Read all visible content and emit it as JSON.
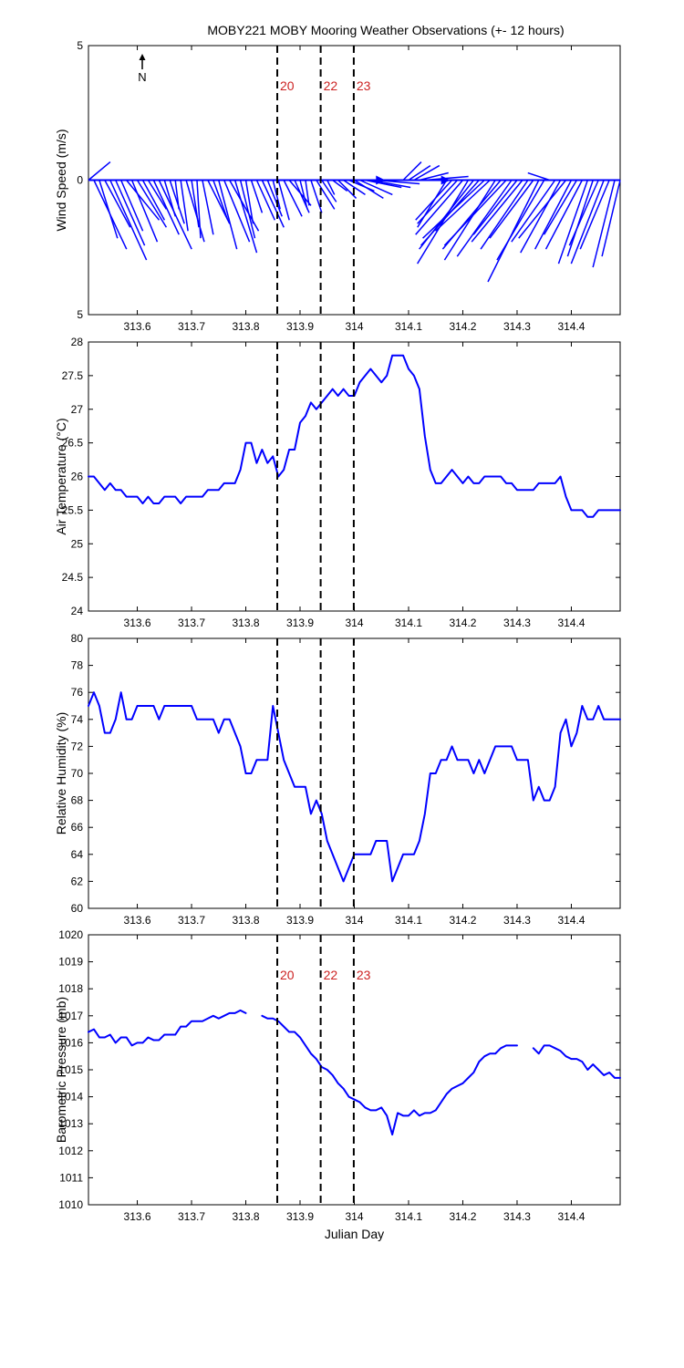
{
  "title": "MOBY221 MOBY Mooring Weather Observations (+- 12 hours)",
  "colors": {
    "series": "#0000ff",
    "event_label": "#cc2222",
    "vline": "#000000"
  },
  "events": [
    {
      "label": "20",
      "x": 313.858
    },
    {
      "label": "22",
      "x": 313.938
    },
    {
      "label": "23",
      "x": 313.999
    }
  ],
  "north_label": "N",
  "chart_data": [
    {
      "type": "quiver",
      "ylabel": "Wind Speed (m/s)",
      "xlabel": "",
      "xlim": [
        313.51,
        314.49
      ],
      "ylim": [
        -5,
        5
      ],
      "yticks": [
        5,
        0,
        5
      ],
      "xticks": [
        "313.6",
        "313.7",
        "313.8",
        "313.9",
        "314",
        "314.1",
        "314.2",
        "314.3",
        "314.4"
      ],
      "show_event_labels": true,
      "x": [
        313.51,
        313.52,
        313.53,
        313.54,
        313.55,
        313.56,
        313.57,
        313.58,
        313.59,
        313.6,
        313.61,
        313.62,
        313.63,
        313.64,
        313.65,
        313.66,
        313.67,
        313.68,
        313.69,
        313.7,
        313.71,
        313.72,
        313.73,
        313.74,
        313.75,
        313.76,
        313.77,
        313.78,
        313.79,
        313.8,
        313.81,
        313.82,
        313.83,
        313.84,
        313.85,
        313.86,
        313.87,
        313.88,
        313.89,
        313.9,
        313.91,
        313.92,
        313.93,
        313.94,
        313.95,
        313.96,
        313.97,
        313.98,
        313.99,
        314.0,
        314.01,
        314.02,
        314.03,
        314.04,
        314.05,
        314.06,
        314.07,
        314.08,
        314.09,
        314.1,
        314.11,
        314.12,
        314.13,
        314.14,
        314.15,
        314.16,
        314.17,
        314.18,
        314.19,
        314.2,
        314.21,
        314.22,
        314.23,
        314.24,
        314.25,
        314.26,
        314.27,
        314.28,
        314.29,
        314.3,
        314.31,
        314.32,
        314.33,
        314.34,
        314.35,
        314.36,
        314.37,
        314.38,
        314.39,
        314.4,
        314.41,
        314.42,
        314.43,
        314.44,
        314.45,
        314.46,
        314.47,
        314.48,
        314.49
      ],
      "u": [
        0.6,
        0.9,
        0.5,
        0.7,
        1.0,
        0.8,
        0.6,
        0.9,
        0.7,
        0.8,
        0.6,
        0.5,
        0.7,
        0.9,
        0.3,
        0.4,
        0.1,
        0.2,
        0.5,
        0.2,
        0.1,
        0.3,
        0.6,
        0.4,
        0.5,
        0.7,
        0.8,
        0.6,
        0.4,
        0.2,
        0.3,
        0.5,
        0.6,
        0.4,
        0.2,
        0.3,
        0.5,
        0.6,
        0.4,
        0.2,
        0.1,
        0.3,
        0.5,
        0.4,
        0.2,
        0.4,
        0.5,
        0.6,
        0.7,
        0.8,
        0.9,
        1.0,
        1.1,
        1.2,
        1.0,
        1.3,
        1.5,
        1.4,
        0.5,
        0.6,
        0.7,
        0.8,
        1.2,
        1.0,
        0.6,
        0.4,
        -0.8,
        -1.0,
        -1.1,
        -1.3,
        -1.4,
        -1.5,
        -1.6,
        -1.7,
        -1.5,
        -1.4,
        -1.6,
        -1.7,
        -1.5,
        -1.2,
        -1.4,
        -1.3,
        -1.2,
        -1.4,
        -1.3,
        -0.6,
        -1.2,
        -1.1,
        -1.3,
        -1.0,
        -0.9,
        -1.0,
        -0.8,
        -0.7,
        -0.8,
        -0.9,
        -0.8,
        -0.6,
        -0.5
      ],
      "v": [
        0.5,
        -1.9,
        -1.6,
        -1.3,
        -2.2,
        -1.8,
        -1.4,
        -1.1,
        -1.7,
        -1.3,
        -1.1,
        -0.8,
        -1.5,
        -1.9,
        -1.0,
        -1.2,
        -0.8,
        -1.4,
        -1.7,
        -1.3,
        -1.6,
        -1.5,
        -1.2,
        -1.1,
        -1.9,
        -1.7,
        -1.4,
        -2.0,
        -1.6,
        -1.2,
        -0.9,
        -1.1,
        -1.3,
        -1.0,
        -0.8,
        -1.1,
        -1.0,
        -0.7,
        -0.9,
        -0.8,
        -0.7,
        -0.9,
        -0.8,
        -0.6,
        -0.4,
        -0.3,
        -0.5,
        -0.4,
        -0.3,
        -0.5,
        -0.4,
        -0.2,
        -0.2,
        -0.1,
        0.0,
        0.0,
        0.0,
        0.0,
        0.5,
        0.4,
        0.4,
        0.2,
        0.1,
        0.0,
        0.0,
        0.0,
        -1.3,
        -1.1,
        -1.2,
        -1.5,
        -2.3,
        -1.9,
        -1.8,
        -1.6,
        -1.4,
        -2.2,
        -1.9,
        -1.8,
        -2.1,
        -1.5,
        -1.7,
        -1.9,
        -1.6,
        -2.8,
        -2.2,
        0.2,
        -1.7,
        -2.0,
        -1.6,
        -1.9,
        -1.5,
        -1.9,
        -2.3,
        -2.1,
        -1.8,
        -2.3,
        -1.9,
        -2.4,
        -2.1
      ]
    },
    {
      "type": "line",
      "ylabel": "Air Temperature (°C)",
      "xlabel": "",
      "xlim": [
        313.51,
        314.49
      ],
      "ylim": [
        24,
        28
      ],
      "yticks": [
        24,
        24.5,
        25,
        25.5,
        26,
        26.5,
        27,
        27.5,
        28
      ],
      "xticks": [
        "313.6",
        "313.7",
        "313.8",
        "313.9",
        "314",
        "314.1",
        "314.2",
        "314.3",
        "314.4"
      ],
      "show_event_labels": false,
      "x": [
        313.51,
        313.52,
        313.53,
        313.54,
        313.55,
        313.56,
        313.57,
        313.58,
        313.59,
        313.6,
        313.61,
        313.62,
        313.63,
        313.64,
        313.65,
        313.66,
        313.67,
        313.68,
        313.69,
        313.7,
        313.71,
        313.72,
        313.73,
        313.74,
        313.75,
        313.76,
        313.77,
        313.78,
        313.79,
        313.8,
        313.81,
        313.82,
        313.83,
        313.84,
        313.85,
        313.86,
        313.87,
        313.88,
        313.89,
        313.9,
        313.91,
        313.92,
        313.93,
        313.94,
        313.95,
        313.96,
        313.97,
        313.98,
        313.99,
        314.0,
        314.01,
        314.02,
        314.03,
        314.04,
        314.05,
        314.06,
        314.07,
        314.08,
        314.09,
        314.1,
        314.11,
        314.12,
        314.13,
        314.14,
        314.15,
        314.16,
        314.17,
        314.18,
        314.19,
        314.2,
        314.21,
        314.22,
        314.23,
        314.24,
        314.25,
        314.26,
        314.27,
        314.28,
        314.29,
        314.3,
        314.31,
        314.32,
        314.33,
        314.34,
        314.35,
        314.36,
        314.37,
        314.38,
        314.39,
        314.4,
        314.41,
        314.42,
        314.43,
        314.44,
        314.45,
        314.46,
        314.47,
        314.48,
        314.49
      ],
      "y": [
        26.0,
        26.0,
        25.9,
        25.8,
        25.9,
        25.8,
        25.8,
        25.7,
        25.7,
        25.7,
        25.6,
        25.7,
        25.6,
        25.6,
        25.7,
        25.7,
        25.7,
        25.6,
        25.7,
        25.7,
        25.7,
        25.7,
        25.8,
        25.8,
        25.8,
        25.9,
        25.9,
        25.9,
        26.1,
        26.5,
        26.5,
        26.2,
        26.4,
        26.2,
        26.3,
        26.0,
        26.1,
        26.4,
        26.4,
        26.8,
        26.9,
        27.1,
        27.0,
        27.1,
        27.2,
        27.3,
        27.2,
        27.3,
        27.2,
        27.2,
        27.4,
        27.5,
        27.6,
        27.5,
        27.4,
        27.5,
        27.8,
        27.8,
        27.8,
        27.6,
        27.5,
        27.3,
        26.6,
        26.1,
        25.9,
        25.9,
        26.0,
        26.1,
        26.0,
        25.9,
        26.0,
        25.9,
        25.9,
        26.0,
        26.0,
        26.0,
        26.0,
        25.9,
        25.9,
        25.8,
        25.8,
        25.8,
        25.8,
        25.9,
        25.9,
        25.9,
        25.9,
        26.0,
        25.7,
        25.5,
        25.5,
        25.5,
        25.4,
        25.4,
        25.5,
        25.5,
        25.5,
        25.5,
        25.5
      ]
    },
    {
      "type": "line",
      "ylabel": "Relative Humidity (%)",
      "xlabel": "",
      "xlim": [
        313.51,
        314.49
      ],
      "ylim": [
        60,
        80
      ],
      "yticks": [
        60,
        62,
        64,
        66,
        68,
        70,
        72,
        74,
        76,
        78,
        80
      ],
      "xticks": [
        "313.6",
        "313.7",
        "313.8",
        "313.9",
        "314",
        "314.1",
        "314.2",
        "314.3",
        "314.4"
      ],
      "show_event_labels": false,
      "x": [
        313.51,
        313.52,
        313.53,
        313.54,
        313.55,
        313.56,
        313.57,
        313.58,
        313.59,
        313.6,
        313.61,
        313.62,
        313.63,
        313.64,
        313.65,
        313.66,
        313.67,
        313.68,
        313.69,
        313.7,
        313.71,
        313.72,
        313.73,
        313.74,
        313.75,
        313.76,
        313.77,
        313.78,
        313.79,
        313.8,
        313.81,
        313.82,
        313.83,
        313.84,
        313.85,
        313.86,
        313.87,
        313.88,
        313.89,
        313.9,
        313.91,
        313.92,
        313.93,
        313.94,
        313.95,
        313.96,
        313.97,
        313.98,
        313.99,
        314.0,
        314.01,
        314.02,
        314.03,
        314.04,
        314.05,
        314.06,
        314.07,
        314.08,
        314.09,
        314.1,
        314.11,
        314.12,
        314.13,
        314.14,
        314.15,
        314.16,
        314.17,
        314.18,
        314.19,
        314.2,
        314.21,
        314.22,
        314.23,
        314.24,
        314.25,
        314.26,
        314.27,
        314.28,
        314.29,
        314.3,
        314.31,
        314.32,
        314.33,
        314.34,
        314.35,
        314.36,
        314.37,
        314.38,
        314.39,
        314.4,
        314.41,
        314.42,
        314.43,
        314.44,
        314.45,
        314.46,
        314.47,
        314.48,
        314.49
      ],
      "y": [
        75,
        76,
        75,
        73,
        73,
        74,
        76,
        74,
        74,
        75,
        75,
        75,
        75,
        74,
        75,
        75,
        75,
        75,
        75,
        75,
        74,
        74,
        74,
        74,
        73,
        74,
        74,
        73,
        72,
        70,
        70,
        71,
        71,
        71,
        75,
        73,
        71,
        70,
        69,
        69,
        69,
        67,
        68,
        67,
        65,
        64,
        63,
        62,
        63,
        64,
        64,
        64,
        64,
        65,
        65,
        65,
        62,
        63,
        64,
        64,
        64,
        65,
        67,
        70,
        70,
        71,
        71,
        72,
        71,
        71,
        71,
        70,
        71,
        70,
        71,
        72,
        72,
        72,
        72,
        71,
        71,
        71,
        68,
        69,
        68,
        68,
        69,
        73,
        74,
        72,
        73,
        75,
        74,
        74,
        75,
        74,
        74,
        74,
        74
      ]
    },
    {
      "type": "line",
      "ylabel": "Barometric Pressure (mb)",
      "xlabel": "Julian Day",
      "xlim": [
        313.51,
        314.49
      ],
      "ylim": [
        1010,
        1020
      ],
      "yticks": [
        1010,
        1011,
        1012,
        1013,
        1014,
        1015,
        1016,
        1017,
        1018,
        1019,
        1020
      ],
      "xticks": [
        "313.6",
        "313.7",
        "313.8",
        "313.9",
        "314",
        "314.1",
        "314.2",
        "314.3",
        "314.4"
      ],
      "show_event_labels": true,
      "x": [
        313.51,
        313.52,
        313.53,
        313.54,
        313.55,
        313.56,
        313.57,
        313.58,
        313.59,
        313.6,
        313.61,
        313.62,
        313.63,
        313.64,
        313.65,
        313.66,
        313.67,
        313.68,
        313.69,
        313.7,
        313.71,
        313.72,
        313.73,
        313.74,
        313.75,
        313.76,
        313.77,
        313.78,
        313.79,
        313.8,
        null,
        313.83,
        313.84,
        313.85,
        313.86,
        313.87,
        313.88,
        313.89,
        313.9,
        313.91,
        313.92,
        313.93,
        313.94,
        313.95,
        313.96,
        313.97,
        313.98,
        313.99,
        314.0,
        314.01,
        314.02,
        314.03,
        314.04,
        314.05,
        314.06,
        314.07,
        314.08,
        314.09,
        314.1,
        314.11,
        314.12,
        314.13,
        314.14,
        314.15,
        314.16,
        314.17,
        314.18,
        314.19,
        314.2,
        314.21,
        314.22,
        314.23,
        314.24,
        314.25,
        314.26,
        314.27,
        314.28,
        314.29,
        314.3,
        null,
        314.33,
        314.34,
        314.35,
        314.36,
        314.37,
        314.38,
        314.39,
        314.4,
        314.41,
        314.42,
        314.43,
        314.44,
        314.45,
        314.46,
        314.47,
        314.48,
        314.49
      ],
      "y": [
        1016.4,
        1016.5,
        1016.2,
        1016.2,
        1016.3,
        1016.0,
        1016.2,
        1016.2,
        1015.9,
        1016.0,
        1016.0,
        1016.2,
        1016.1,
        1016.1,
        1016.3,
        1016.3,
        1016.3,
        1016.6,
        1016.6,
        1016.8,
        1016.8,
        1016.8,
        1016.9,
        1017.0,
        1016.9,
        1017.0,
        1017.1,
        1017.1,
        1017.2,
        1017.1,
        null,
        1017.0,
        1016.9,
        1016.9,
        1016.8,
        1016.6,
        1016.4,
        1016.4,
        1016.2,
        1015.9,
        1015.6,
        1015.4,
        1015.1,
        1015.0,
        1014.8,
        1014.5,
        1014.3,
        1014.0,
        1013.9,
        1013.8,
        1013.6,
        1013.5,
        1013.5,
        1013.6,
        1013.3,
        1012.6,
        1013.4,
        1013.3,
        1013.3,
        1013.5,
        1013.3,
        1013.4,
        1013.4,
        1013.5,
        1013.8,
        1014.1,
        1014.3,
        1014.4,
        1014.5,
        1014.7,
        1014.9,
        1015.3,
        1015.5,
        1015.6,
        1015.6,
        1015.8,
        1015.9,
        1015.9,
        1015.9,
        null,
        1015.8,
        1015.6,
        1015.9,
        1015.9,
        1015.8,
        1015.7,
        1015.5,
        1015.4,
        1015.4,
        1015.3,
        1015.0,
        1015.2,
        1015.0,
        1014.8,
        1014.9,
        1014.7,
        1014.7
      ]
    }
  ]
}
